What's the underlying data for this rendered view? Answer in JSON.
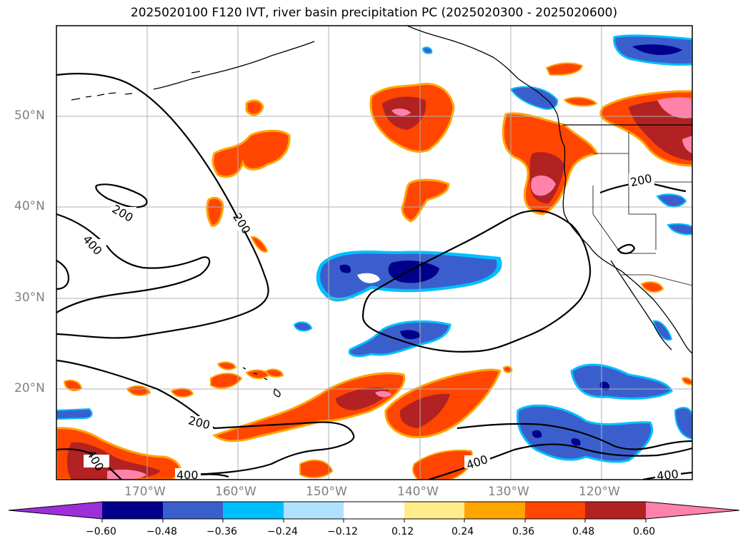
{
  "title": "2025020100 F120 IVT, river basin precipitation PC (2025020300 - 2025020600)",
  "lat_labels": [
    "50°N",
    "40°N",
    "30°N",
    "20°N"
  ],
  "lon_labels": [
    "170°W",
    "160°W",
    "150°W",
    "140°W",
    "130°W",
    "120°W"
  ],
  "contour_labels": [
    "200",
    "200",
    "400",
    "200",
    "200",
    "400",
    "400",
    "400",
    "400"
  ],
  "colorbar": {
    "ticks": [
      "−0.60",
      "−0.48",
      "−0.36",
      "−0.24",
      "−0.12",
      "0.12",
      "0.24",
      "0.36",
      "0.48",
      "0.60"
    ],
    "colors": [
      "#9b30d9",
      "#00008b",
      "#3a5fcd",
      "#00bfff",
      "#b0e2ff",
      "#ffffff",
      "#ffec8b",
      "#ffa500",
      "#ff4500",
      "#b22222",
      "#ff82ab"
    ]
  },
  "colors": {
    "coast": "#000000",
    "grid": "#b0b0b0",
    "label_gray": "#808080"
  }
}
